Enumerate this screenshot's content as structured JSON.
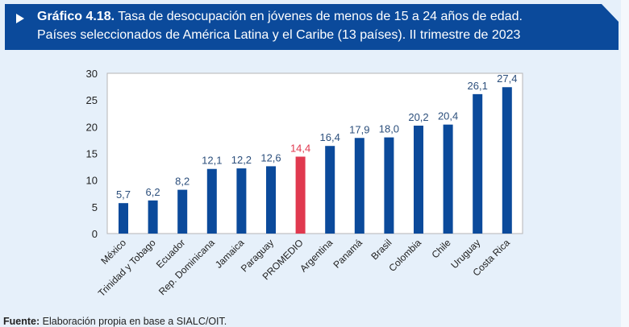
{
  "header": {
    "label": "Gráfico 4.18.",
    "title_line1": "Tasa de desocupación en jóvenes de menos de 15 a 24 años de edad.",
    "title_line2": "Países seleccionados de América Latina y el Caribe (13 países). II trimestre de 2023"
  },
  "source": {
    "label": "Fuente:",
    "text": "Elaboración propia en base a SIALC/OIT."
  },
  "chart_data": {
    "type": "bar",
    "title": "Tasa de desocupación en jóvenes de menos de 15 a 24 años de edad. Países seleccionados de América Latina y el Caribe (13 países). II trimestre de 2023",
    "categories": [
      "México",
      "Trinidad y Tobago",
      "Ecuador",
      "Rep. Dominicana",
      "Jamaica",
      "Paraguay",
      "PROMEDIO",
      "Argentina",
      "Panamá",
      "Brasil",
      "Colombia",
      "Chile",
      "Uruguay",
      "Costa Rica"
    ],
    "values": [
      5.7,
      6.2,
      8.2,
      12.1,
      12.2,
      12.6,
      14.4,
      16.4,
      17.9,
      18.0,
      20.2,
      20.4,
      26.1,
      27.4
    ],
    "data_labels": [
      "5,7",
      "6,2",
      "8,2",
      "12,1",
      "12,2",
      "12,6",
      "14,4",
      "16,4",
      "17,9",
      "18,0",
      "20,2",
      "20,4",
      "26,1",
      "27,4"
    ],
    "highlight": "PROMEDIO",
    "colors": {
      "bar": "#0b4a9b",
      "highlight": "#e0394f",
      "label": "#2c4f7c",
      "highlight_label": "#e0394f"
    },
    "yticks": [
      "0",
      "5",
      "10",
      "15",
      "20",
      "25",
      "30"
    ],
    "ylim": [
      0,
      30
    ],
    "xlabel": "",
    "ylabel": "",
    "grid": false,
    "legend": "none"
  }
}
